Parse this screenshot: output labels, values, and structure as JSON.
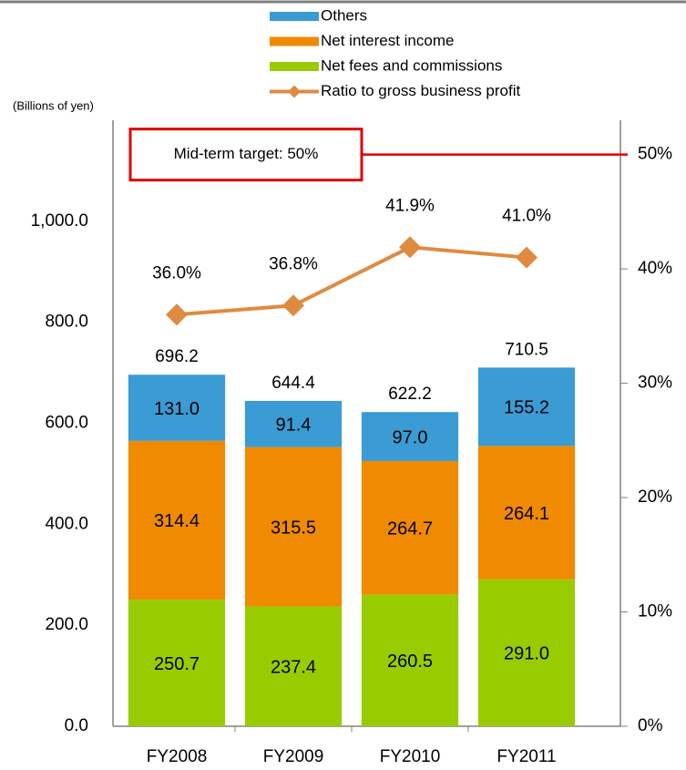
{
  "chart_data": {
    "type": "bar",
    "y_label": "(Billions of yen)",
    "categories": [
      "FY2008",
      "FY2009",
      "FY2010",
      "FY2011"
    ],
    "series": [
      {
        "name": "Net fees and commissions",
        "color": "#99cc00",
        "values": [
          250.7,
          237.4,
          260.5,
          291.0
        ],
        "value_labels": [
          "250.7",
          "237.4",
          "260.5",
          "291.0"
        ]
      },
      {
        "name": "Net interest income",
        "color": "#f08a00",
        "values": [
          314.4,
          315.5,
          264.7,
          264.1
        ],
        "value_labels": [
          "314.4",
          "315.5",
          "264.7",
          "264.1"
        ]
      },
      {
        "name": "Others",
        "color": "#3a9bd5",
        "values": [
          131.0,
          91.4,
          97.0,
          155.2
        ],
        "value_labels": [
          "131.0",
          "91.4",
          "97.0",
          "155.2"
        ]
      },
      {
        "name": "Ratio to gross business profit",
        "type": "line",
        "axis": "y2",
        "color": "#e08a40",
        "values": [
          36.0,
          36.8,
          41.9,
          41.0
        ],
        "value_labels": [
          "36.0%",
          "36.8%",
          "41.9%",
          "41.0%"
        ]
      }
    ],
    "totals": [
      696.2,
      644.4,
      622.2,
      710.5
    ],
    "annotation": {
      "text": "Mid-term target: 50%",
      "value": 50
    },
    "ylim": [
      0,
      1200
    ],
    "yticks": [
      {
        "value": 0,
        "label": "0.0"
      },
      {
        "value": 200,
        "label": "200.0"
      },
      {
        "value": 400,
        "label": "400.0"
      },
      {
        "value": 600,
        "label": "600.0"
      },
      {
        "value": 800,
        "label": "800.0"
      },
      {
        "value": 1000,
        "label": "1,000.0"
      }
    ],
    "y2lim": [
      0,
      53
    ],
    "y2ticks": [
      {
        "value": 0,
        "label": "0%"
      },
      {
        "value": 10,
        "label": "10%"
      },
      {
        "value": 20,
        "label": "20%"
      },
      {
        "value": 30,
        "label": "30%"
      },
      {
        "value": 40,
        "label": "40%"
      },
      {
        "value": 50,
        "label": "50%"
      }
    ]
  }
}
